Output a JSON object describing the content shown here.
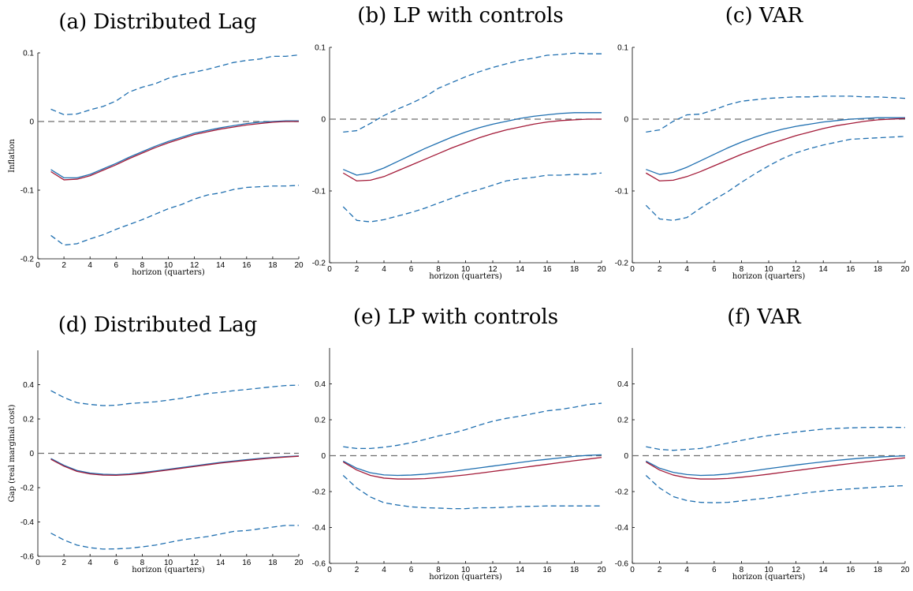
{
  "chart_data": [
    {
      "type": "line",
      "title": "(a) Distributed Lag",
      "xlabel": "horizon (quarters)",
      "ylabel": "Inflation",
      "xlim": [
        0,
        20
      ],
      "ylim": [
        -0.2,
        0.1
      ],
      "xticks": [
        0,
        2,
        4,
        6,
        8,
        10,
        12,
        14,
        16,
        18,
        20
      ],
      "yticks": [
        -0.2,
        -0.1,
        0,
        0.1
      ],
      "x": [
        1,
        2,
        3,
        4,
        5,
        6,
        7,
        8,
        9,
        10,
        11,
        12,
        13,
        14,
        15,
        16,
        17,
        18,
        19,
        20
      ],
      "series": [
        {
          "style": "solid",
          "color": "#1f6fb0",
          "values": [
            -0.07,
            -0.082,
            -0.082,
            -0.077,
            -0.069,
            -0.061,
            -0.052,
            -0.044,
            -0.036,
            -0.029,
            -0.023,
            -0.017,
            -0.013,
            -0.009,
            -0.006,
            -0.003,
            -0.001,
            0.0,
            0.001,
            0.001
          ]
        },
        {
          "style": "solid",
          "color": "#a31a38",
          "values": [
            -0.073,
            -0.085,
            -0.084,
            -0.079,
            -0.071,
            -0.063,
            -0.054,
            -0.046,
            -0.038,
            -0.031,
            -0.025,
            -0.019,
            -0.015,
            -0.011,
            -0.008,
            -0.005,
            -0.003,
            -0.001,
            0.0,
            0.0
          ]
        },
        {
          "style": "dashed",
          "color": "#1f6fb0",
          "values": [
            0.018,
            0.01,
            0.011,
            0.017,
            0.022,
            0.03,
            0.043,
            0.05,
            0.055,
            0.063,
            0.068,
            0.072,
            0.076,
            0.081,
            0.086,
            0.089,
            0.091,
            0.095,
            0.095,
            0.097
          ]
        },
        {
          "style": "dashed",
          "color": "#1f6fb0",
          "values": [
            -0.166,
            -0.18,
            -0.178,
            -0.171,
            -0.165,
            -0.157,
            -0.15,
            -0.143,
            -0.135,
            -0.127,
            -0.121,
            -0.113,
            -0.107,
            -0.104,
            -0.099,
            -0.096,
            -0.095,
            -0.094,
            -0.094,
            -0.093
          ]
        }
      ]
    },
    {
      "type": "line",
      "title": "(b) LP with controls",
      "xlabel": "horizon (quarters)",
      "ylabel": "",
      "xlim": [
        0,
        20
      ],
      "ylim": [
        -0.2,
        0.1
      ],
      "xticks": [
        0,
        2,
        4,
        6,
        8,
        10,
        12,
        14,
        16,
        18,
        20
      ],
      "yticks": [
        -0.2,
        -0.1,
        0,
        0.1
      ],
      "x": [
        1,
        2,
        3,
        4,
        5,
        6,
        7,
        8,
        9,
        10,
        11,
        12,
        13,
        14,
        15,
        16,
        17,
        18,
        19,
        20
      ],
      "series": [
        {
          "style": "solid",
          "color": "#1f6fb0",
          "values": [
            -0.07,
            -0.078,
            -0.075,
            -0.068,
            -0.059,
            -0.05,
            -0.041,
            -0.033,
            -0.025,
            -0.018,
            -0.012,
            -0.007,
            -0.003,
            0.001,
            0.004,
            0.006,
            0.008,
            0.009,
            0.009,
            0.009
          ]
        },
        {
          "style": "solid",
          "color": "#a31a38",
          "values": [
            -0.075,
            -0.086,
            -0.085,
            -0.08,
            -0.072,
            -0.064,
            -0.056,
            -0.048,
            -0.04,
            -0.033,
            -0.026,
            -0.02,
            -0.015,
            -0.011,
            -0.007,
            -0.004,
            -0.002,
            -0.001,
            0.0,
            0.0
          ]
        },
        {
          "style": "dashed",
          "color": "#1f6fb0",
          "values": [
            -0.018,
            -0.016,
            -0.006,
            0.005,
            0.014,
            0.022,
            0.031,
            0.043,
            0.051,
            0.059,
            0.066,
            0.072,
            0.077,
            0.082,
            0.085,
            0.089,
            0.09,
            0.092,
            0.091,
            0.091
          ]
        },
        {
          "style": "dashed",
          "color": "#1f6fb0",
          "values": [
            -0.122,
            -0.141,
            -0.143,
            -0.14,
            -0.135,
            -0.13,
            -0.124,
            -0.117,
            -0.11,
            -0.103,
            -0.098,
            -0.092,
            -0.086,
            -0.083,
            -0.081,
            -0.078,
            -0.078,
            -0.077,
            -0.077,
            -0.075
          ]
        }
      ]
    },
    {
      "type": "line",
      "title": "(c) VAR",
      "xlabel": "horizon (quarters)",
      "ylabel": "",
      "xlim": [
        0,
        20
      ],
      "ylim": [
        -0.2,
        0.1
      ],
      "xticks": [
        0,
        2,
        4,
        6,
        8,
        10,
        12,
        14,
        16,
        18,
        20
      ],
      "yticks": [
        -0.2,
        -0.1,
        0,
        0.1
      ],
      "x": [
        1,
        2,
        3,
        4,
        5,
        6,
        7,
        8,
        9,
        10,
        11,
        12,
        13,
        14,
        15,
        16,
        17,
        18,
        19,
        20
      ],
      "series": [
        {
          "style": "solid",
          "color": "#1f6fb0",
          "values": [
            -0.07,
            -0.077,
            -0.074,
            -0.067,
            -0.058,
            -0.049,
            -0.04,
            -0.032,
            -0.025,
            -0.019,
            -0.014,
            -0.01,
            -0.007,
            -0.004,
            -0.002,
            0.0,
            0.001,
            0.002,
            0.002,
            0.002
          ]
        },
        {
          "style": "solid",
          "color": "#a31a38",
          "values": [
            -0.075,
            -0.086,
            -0.085,
            -0.08,
            -0.073,
            -0.065,
            -0.057,
            -0.049,
            -0.042,
            -0.035,
            -0.029,
            -0.023,
            -0.018,
            -0.013,
            -0.009,
            -0.006,
            -0.003,
            -0.001,
            0.0,
            0.001
          ]
        },
        {
          "style": "dashed",
          "color": "#1f6fb0",
          "values": [
            -0.018,
            -0.015,
            -0.003,
            0.006,
            0.007,
            0.013,
            0.02,
            0.025,
            0.027,
            0.029,
            0.03,
            0.031,
            0.031,
            0.032,
            0.032,
            0.032,
            0.031,
            0.031,
            0.03,
            0.029
          ]
        },
        {
          "style": "dashed",
          "color": "#1f6fb0",
          "values": [
            -0.12,
            -0.139,
            -0.141,
            -0.137,
            -0.124,
            -0.112,
            -0.101,
            -0.088,
            -0.076,
            -0.065,
            -0.055,
            -0.047,
            -0.041,
            -0.036,
            -0.032,
            -0.028,
            -0.027,
            -0.026,
            -0.025,
            -0.024
          ]
        }
      ]
    },
    {
      "type": "line",
      "title": "(d) Distributed Lag",
      "xlabel": "horizon (quarters)",
      "ylabel": "Gap (real marginal cost)",
      "xlim": [
        0,
        20
      ],
      "ylim": [
        -0.6,
        0.6
      ],
      "xticks": [
        0,
        2,
        4,
        6,
        8,
        10,
        12,
        14,
        16,
        18,
        20
      ],
      "yticks": [
        -0.6,
        -0.4,
        -0.2,
        0,
        0.2,
        0.4
      ],
      "x": [
        1,
        2,
        3,
        4,
        5,
        6,
        7,
        8,
        9,
        10,
        11,
        12,
        13,
        14,
        15,
        16,
        17,
        18,
        19,
        20
      ],
      "series": [
        {
          "style": "solid",
          "color": "#1f6fb0",
          "values": [
            -0.03,
            -0.07,
            -0.1,
            -0.115,
            -0.122,
            -0.124,
            -0.12,
            -0.112,
            -0.103,
            -0.093,
            -0.083,
            -0.073,
            -0.063,
            -0.053,
            -0.045,
            -0.037,
            -0.03,
            -0.024,
            -0.019,
            -0.015
          ]
        },
        {
          "style": "solid",
          "color": "#a31a38",
          "values": [
            -0.035,
            -0.075,
            -0.105,
            -0.12,
            -0.127,
            -0.128,
            -0.124,
            -0.117,
            -0.107,
            -0.097,
            -0.087,
            -0.077,
            -0.067,
            -0.057,
            -0.049,
            -0.041,
            -0.034,
            -0.027,
            -0.022,
            -0.017
          ]
        },
        {
          "style": "dashed",
          "color": "#1f6fb0",
          "values": [
            0.365,
            0.325,
            0.295,
            0.285,
            0.278,
            0.28,
            0.29,
            0.295,
            0.3,
            0.31,
            0.32,
            0.335,
            0.348,
            0.355,
            0.365,
            0.372,
            0.38,
            0.388,
            0.395,
            0.397
          ]
        },
        {
          "style": "dashed",
          "color": "#1f6fb0",
          "values": [
            -0.465,
            -0.505,
            -0.535,
            -0.55,
            -0.558,
            -0.557,
            -0.553,
            -0.545,
            -0.535,
            -0.52,
            -0.505,
            -0.495,
            -0.485,
            -0.47,
            -0.455,
            -0.45,
            -0.44,
            -0.43,
            -0.42,
            -0.42
          ]
        }
      ]
    },
    {
      "type": "line",
      "title": "(e) LP with controls",
      "xlabel": "horizon (quarters)",
      "ylabel": "",
      "xlim": [
        0,
        20
      ],
      "ylim": [
        -0.6,
        0.6
      ],
      "xticks": [
        0,
        2,
        4,
        6,
        8,
        10,
        12,
        14,
        16,
        18,
        20
      ],
      "yticks": [
        -0.6,
        -0.4,
        -0.2,
        0,
        0.2,
        0.4
      ],
      "x": [
        1,
        2,
        3,
        4,
        5,
        6,
        7,
        8,
        9,
        10,
        11,
        12,
        13,
        14,
        15,
        16,
        17,
        18,
        19,
        20
      ],
      "series": [
        {
          "style": "solid",
          "color": "#1f6fb0",
          "values": [
            -0.03,
            -0.07,
            -0.095,
            -0.107,
            -0.11,
            -0.108,
            -0.103,
            -0.096,
            -0.088,
            -0.078,
            -0.068,
            -0.058,
            -0.048,
            -0.038,
            -0.028,
            -0.02,
            -0.012,
            -0.004,
            0.002,
            0.005
          ]
        },
        {
          "style": "solid",
          "color": "#a31a38",
          "values": [
            -0.035,
            -0.08,
            -0.11,
            -0.125,
            -0.13,
            -0.13,
            -0.128,
            -0.122,
            -0.115,
            -0.107,
            -0.098,
            -0.088,
            -0.078,
            -0.068,
            -0.058,
            -0.048,
            -0.038,
            -0.028,
            -0.019,
            -0.01
          ]
        },
        {
          "style": "dashed",
          "color": "#1f6fb0",
          "values": [
            0.05,
            0.04,
            0.04,
            0.047,
            0.058,
            0.072,
            0.09,
            0.11,
            0.125,
            0.145,
            0.17,
            0.192,
            0.208,
            0.22,
            0.235,
            0.25,
            0.258,
            0.27,
            0.285,
            0.292
          ]
        },
        {
          "style": "dashed",
          "color": "#1f6fb0",
          "values": [
            -0.11,
            -0.18,
            -0.23,
            -0.262,
            -0.275,
            -0.285,
            -0.29,
            -0.292,
            -0.295,
            -0.295,
            -0.29,
            -0.29,
            -0.287,
            -0.283,
            -0.282,
            -0.28,
            -0.28,
            -0.28,
            -0.28,
            -0.28
          ]
        }
      ]
    },
    {
      "type": "line",
      "title": "(f) VAR",
      "xlabel": "horizon (quarters)",
      "ylabel": "",
      "xlim": [
        0,
        20
      ],
      "ylim": [
        -0.6,
        0.6
      ],
      "xticks": [
        0,
        2,
        4,
        6,
        8,
        10,
        12,
        14,
        16,
        18,
        20
      ],
      "yticks": [
        -0.6,
        -0.4,
        -0.2,
        0,
        0.2,
        0.4
      ],
      "x": [
        1,
        2,
        3,
        4,
        5,
        6,
        7,
        8,
        9,
        10,
        11,
        12,
        13,
        14,
        15,
        16,
        17,
        18,
        19,
        20
      ],
      "series": [
        {
          "style": "solid",
          "color": "#1f6fb0",
          "values": [
            -0.03,
            -0.07,
            -0.093,
            -0.105,
            -0.11,
            -0.108,
            -0.102,
            -0.093,
            -0.083,
            -0.072,
            -0.062,
            -0.052,
            -0.043,
            -0.034,
            -0.026,
            -0.019,
            -0.013,
            -0.008,
            -0.004,
            -0.001
          ]
        },
        {
          "style": "solid",
          "color": "#a31a38",
          "values": [
            -0.035,
            -0.08,
            -0.108,
            -0.123,
            -0.13,
            -0.13,
            -0.127,
            -0.12,
            -0.112,
            -0.103,
            -0.093,
            -0.083,
            -0.073,
            -0.063,
            -0.053,
            -0.044,
            -0.035,
            -0.027,
            -0.019,
            -0.012
          ]
        },
        {
          "style": "dashed",
          "color": "#1f6fb0",
          "values": [
            0.05,
            0.035,
            0.03,
            0.035,
            0.04,
            0.055,
            0.07,
            0.085,
            0.1,
            0.112,
            0.122,
            0.132,
            0.14,
            0.148,
            0.152,
            0.155,
            0.157,
            0.158,
            0.158,
            0.157
          ]
        },
        {
          "style": "dashed",
          "color": "#1f6fb0",
          "values": [
            -0.11,
            -0.18,
            -0.228,
            -0.25,
            -0.26,
            -0.262,
            -0.26,
            -0.252,
            -0.243,
            -0.235,
            -0.225,
            -0.215,
            -0.205,
            -0.197,
            -0.19,
            -0.185,
            -0.18,
            -0.175,
            -0.17,
            -0.167
          ]
        }
      ]
    }
  ]
}
